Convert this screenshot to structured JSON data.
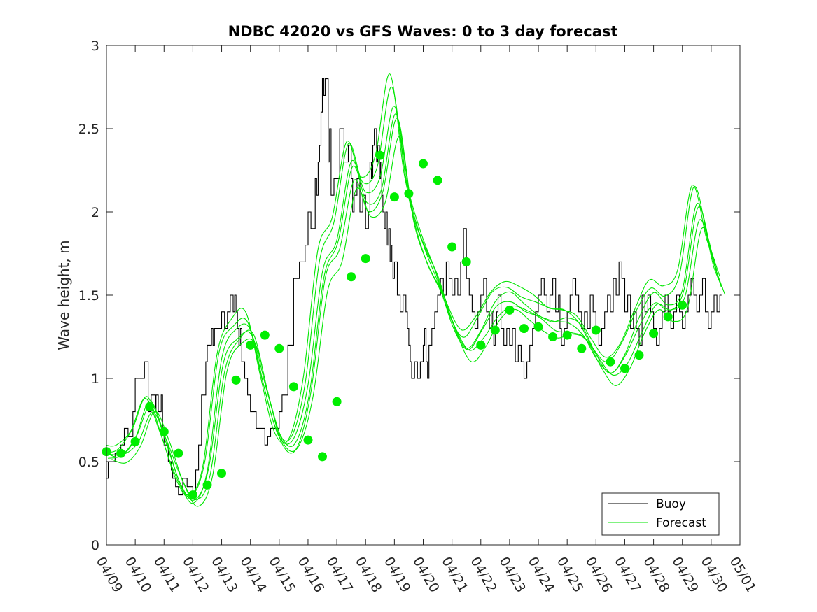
{
  "chart_data": {
    "type": "line",
    "title": "NDBC 42020 vs GFS Waves: 0 to 3 day forecast",
    "xlabel": "",
    "ylabel": "Wave height, m",
    "x_start": "04/09",
    "x_tick_labels": [
      "04/09",
      "04/10",
      "04/11",
      "04/12",
      "04/13",
      "04/14",
      "04/15",
      "04/16",
      "04/17",
      "04/18",
      "04/19",
      "04/20",
      "04/21",
      "04/22",
      "04/23",
      "04/24",
      "04/25",
      "04/26",
      "04/27",
      "04/28",
      "04/29",
      "04/30",
      "05/01"
    ],
    "x_range": [
      "04/09 00:00",
      "05/01 00:00"
    ],
    "y_ticks": [
      0,
      0.5,
      1,
      1.5,
      2,
      2.5,
      3
    ],
    "y_tick_labels": [
      "0",
      "0.5",
      "1",
      "1.5",
      "2",
      "2.5",
      "3"
    ],
    "ylim": [
      0,
      3
    ],
    "grid": false,
    "legend_position": "bottom-right",
    "legend": [
      {
        "label": "Buoy",
        "color": "#000000"
      },
      {
        "label": "Forecast",
        "color": "#00e600"
      }
    ],
    "colors": {
      "buoy": "#000000",
      "forecast": "#00e600",
      "analysis_dot": "#00ee00"
    },
    "series": [
      {
        "name": "Buoy",
        "x_days": [
          0,
          0.06,
          0.12,
          0.3,
          0.5,
          0.62,
          0.75,
          0.92,
          1.0,
          1.2,
          1.32,
          1.45,
          1.55,
          1.7,
          1.72,
          1.8,
          1.9,
          1.95,
          2.0,
          2.1,
          2.15,
          2.25,
          2.3,
          2.4,
          2.5,
          2.65,
          2.8,
          3.0,
          3.1,
          3.2,
          3.3,
          3.45,
          3.5,
          3.65,
          3.7,
          3.75,
          3.85,
          4.0,
          4.1,
          4.2,
          4.3,
          4.4,
          4.45,
          4.5,
          4.55,
          4.6,
          4.65,
          4.7,
          4.8,
          4.9,
          5.0,
          5.2,
          5.4,
          5.5,
          5.6,
          5.7,
          5.9,
          6.0,
          6.1,
          6.3,
          6.5,
          6.7,
          6.9,
          7.0,
          7.1,
          7.25,
          7.3,
          7.35,
          7.4,
          7.45,
          7.5,
          7.55,
          7.6,
          7.7,
          7.75,
          7.8,
          7.9,
          8.1,
          8.25,
          8.4,
          8.5,
          8.55,
          8.6,
          8.7,
          8.8,
          8.9,
          9.0,
          9.1,
          9.15,
          9.2,
          9.25,
          9.3,
          9.38,
          9.42,
          9.48,
          9.52,
          9.56,
          9.6,
          9.65,
          9.7,
          9.75,
          9.8,
          9.85,
          9.9,
          9.95,
          10.0,
          10.1,
          10.2,
          10.3,
          10.4,
          10.45,
          10.5,
          10.55,
          10.6,
          10.7,
          10.8,
          10.9,
          11.0,
          11.05,
          11.1,
          11.15,
          11.2,
          11.3,
          11.4,
          11.5,
          11.6,
          11.7,
          11.8,
          11.9,
          12.0,
          12.1,
          12.2,
          12.3,
          12.4,
          12.5,
          12.6,
          12.7,
          12.8,
          12.9,
          13.0,
          13.1,
          13.2,
          13.3,
          13.4,
          13.45,
          13.5,
          13.55,
          13.6,
          13.7,
          13.8,
          13.9,
          14.0,
          14.1,
          14.2,
          14.3,
          14.4,
          14.5,
          14.6,
          14.7,
          14.8,
          14.9,
          15.0,
          15.1,
          15.2,
          15.3,
          15.4,
          15.5,
          15.6,
          15.7,
          15.75,
          15.8,
          15.9,
          16.0,
          16.1,
          16.2,
          16.3,
          16.4,
          16.5,
          16.6,
          16.7,
          16.8,
          16.9,
          17.0,
          17.1,
          17.2,
          17.3,
          17.4,
          17.5,
          17.6,
          17.7,
          17.8,
          17.9,
          18.0,
          18.1,
          18.2,
          18.3,
          18.4,
          18.5,
          18.6,
          18.7,
          18.8,
          18.9,
          19.0,
          19.1,
          19.2,
          19.3,
          19.4,
          19.5,
          19.6,
          19.7,
          19.8,
          19.9,
          20.0,
          20.1,
          20.2,
          20.3,
          20.4,
          20.5,
          20.6,
          20.7,
          20.8,
          20.9,
          21.0,
          21.1,
          21.2,
          21.3
        ],
        "values": [
          0.4,
          0.5,
          0.5,
          0.55,
          0.6,
          0.7,
          0.65,
          0.8,
          1.0,
          1.0,
          1.1,
          0.8,
          0.9,
          0.8,
          0.9,
          0.8,
          0.9,
          0.7,
          0.6,
          0.6,
          0.5,
          0.45,
          0.4,
          0.35,
          0.3,
          0.4,
          0.35,
          0.3,
          0.45,
          0.6,
          0.9,
          1.1,
          1.2,
          1.3,
          1.2,
          1.3,
          1.3,
          1.4,
          1.3,
          1.4,
          1.5,
          1.4,
          1.5,
          1.4,
          1.3,
          1.2,
          1.3,
          1.1,
          1.0,
          0.9,
          0.8,
          0.7,
          0.7,
          0.6,
          0.65,
          0.7,
          0.7,
          0.8,
          0.9,
          1.2,
          1.6,
          1.7,
          1.8,
          2.0,
          1.9,
          2.2,
          2.1,
          2.3,
          2.4,
          2.6,
          2.8,
          2.7,
          2.8,
          2.3,
          2.5,
          2.1,
          2.2,
          2.5,
          2.3,
          2.4,
          2.2,
          2.0,
          2.1,
          2.2,
          2.0,
          2.1,
          1.9,
          2.0,
          2.3,
          2.2,
          2.4,
          2.5,
          2.3,
          2.4,
          2.2,
          2.3,
          2.1,
          2.0,
          1.9,
          2.0,
          1.8,
          1.9,
          1.7,
          1.8,
          1.6,
          1.7,
          1.5,
          1.4,
          1.5,
          1.4,
          1.3,
          1.2,
          1.1,
          1.0,
          1.1,
          1.0,
          1.1,
          1.2,
          1.3,
          1.1,
          1.0,
          1.2,
          1.3,
          1.4,
          1.5,
          1.6,
          1.5,
          1.7,
          1.6,
          1.5,
          1.6,
          1.5,
          1.7,
          1.9,
          1.6,
          1.5,
          1.4,
          1.3,
          1.4,
          1.5,
          1.6,
          1.4,
          1.3,
          1.4,
          1.2,
          1.3,
          1.4,
          1.5,
          1.3,
          1.2,
          1.3,
          1.2,
          1.3,
          1.1,
          1.2,
          1.1,
          1.0,
          1.1,
          1.2,
          1.3,
          1.4,
          1.5,
          1.6,
          1.5,
          1.4,
          1.5,
          1.6,
          1.4,
          1.5,
          1.3,
          1.2,
          1.3,
          1.4,
          1.5,
          1.6,
          1.5,
          1.4,
          1.3,
          1.4,
          1.3,
          1.5,
          1.4,
          1.3,
          1.2,
          1.3,
          1.4,
          1.5,
          1.4,
          1.6,
          1.5,
          1.7,
          1.6,
          1.4,
          1.5,
          1.3,
          1.4,
          1.3,
          1.2,
          1.5,
          1.4,
          1.5,
          1.4,
          1.3,
          1.2,
          1.3,
          1.4,
          1.5,
          1.4,
          1.3,
          1.4,
          1.5,
          1.4,
          1.3,
          1.4,
          1.5,
          1.6,
          1.5,
          1.4,
          1.5,
          1.6,
          1.4,
          1.3,
          1.4,
          1.5,
          1.4,
          1.5
        ]
      },
      {
        "name": "Forecast",
        "x_days": [
          0,
          0.5,
          1.0,
          1.5,
          2.0,
          2.5,
          3.0,
          3.5,
          4.0,
          4.5,
          5.0,
          5.5,
          6.0,
          6.5,
          7.0,
          7.5,
          8.0,
          8.5,
          9.0,
          9.5,
          10.0,
          10.5,
          11.0,
          11.5,
          12.0,
          12.5,
          13.0,
          13.5,
          14.0,
          14.5,
          15.0,
          15.5,
          16.0,
          16.5,
          17.0,
          17.5,
          18.0,
          18.5,
          19.0,
          19.5,
          20.0,
          20.5,
          21.0,
          21.3
        ],
        "values": [
          0.55,
          0.55,
          0.65,
          0.85,
          0.65,
          0.4,
          0.27,
          0.45,
          1.1,
          1.28,
          1.3,
          0.95,
          0.65,
          0.62,
          0.95,
          1.65,
          1.85,
          2.3,
          2.1,
          2.2,
          2.65,
          2.1,
          1.8,
          1.6,
          1.35,
          1.2,
          1.3,
          1.45,
          1.5,
          1.45,
          1.4,
          1.35,
          1.35,
          1.3,
          1.15,
          1.05,
          1.15,
          1.35,
          1.5,
          1.45,
          1.55,
          2.05,
          1.75,
          1.6
        ]
      }
    ],
    "analysis_points": {
      "x_days": [
        0,
        0.5,
        1.0,
        1.5,
        2.0,
        2.5,
        3.0,
        3.5,
        4.0,
        4.5,
        5.0,
        5.5,
        6.0,
        6.5,
        7.0,
        7.5,
        8.0,
        8.5,
        9.0,
        9.5,
        10.0,
        10.5,
        11.0,
        11.5,
        12.0,
        12.5,
        13.0,
        13.5,
        14.0,
        14.5,
        15.0,
        15.5,
        16.0,
        16.5,
        17.0,
        17.5,
        18.0,
        18.5,
        19.0,
        19.5,
        20.0
      ],
      "values": [
        0.56,
        0.55,
        0.62,
        0.83,
        0.68,
        0.55,
        0.3,
        0.36,
        0.43,
        0.99,
        1.2,
        1.26,
        1.18,
        0.95,
        0.63,
        0.53,
        0.86,
        1.61,
        1.72,
        2.34,
        2.09,
        2.11,
        2.29,
        2.19,
        1.79,
        1.7,
        1.2,
        1.29,
        1.41,
        1.3,
        1.31,
        1.25,
        1.26,
        1.18,
        1.29,
        1.1,
        1.06,
        1.14,
        1.27,
        1.37,
        1.44
      ]
    }
  }
}
